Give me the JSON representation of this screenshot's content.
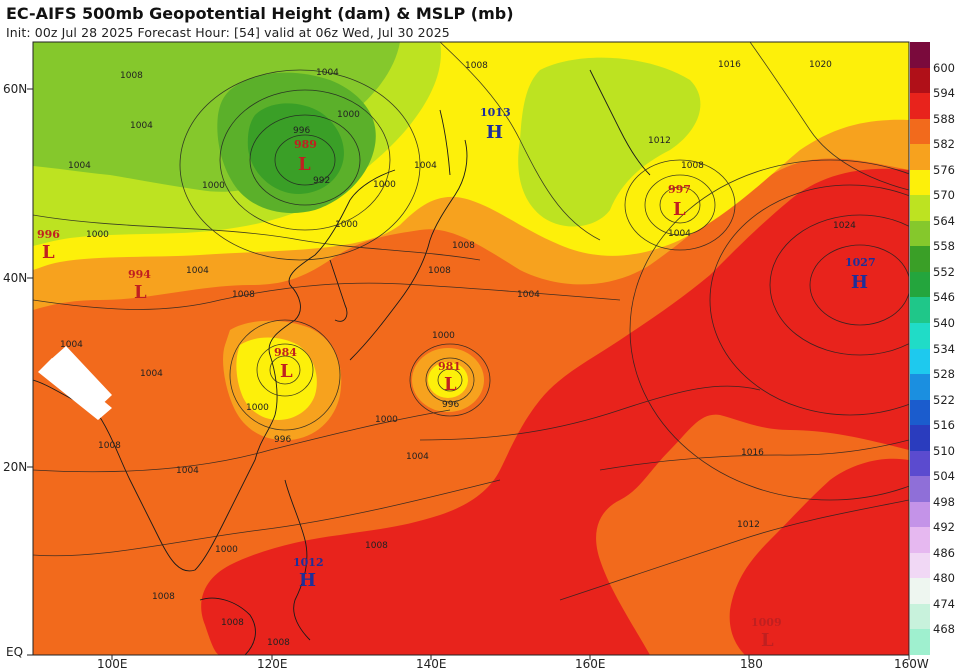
{
  "header": {
    "title": "EC-AIFS 500mb Geopotential Height (dam) & MSLP (mb)",
    "subtitle": "Init: 00z Jul 28 2025   Forecast Hour: [54]   valid at 06z Wed, Jul 30 2025"
  },
  "axes": {
    "lat_labels": [
      "60N",
      "40N",
      "20N",
      "EQ"
    ],
    "lon_labels": [
      "100E",
      "120E",
      "140E",
      "160E",
      "180",
      "160W"
    ]
  },
  "colorbar": {
    "levels": [
      "600",
      "594",
      "588",
      "582",
      "576",
      "570",
      "564",
      "558",
      "552",
      "546",
      "540",
      "534",
      "528",
      "522",
      "516",
      "510",
      "504",
      "498",
      "492",
      "486",
      "480",
      "474",
      "468"
    ],
    "colors": [
      "#7a0a3c",
      "#b01018",
      "#e8231c",
      "#f26a1c",
      "#f7a21e",
      "#fdf00a",
      "#bde321",
      "#85c82c",
      "#3a9f27",
      "#24a53d",
      "#1fc789",
      "#20dcc7",
      "#1ec9ee",
      "#1b8fe0",
      "#1b5ccd",
      "#2a3cbe",
      "#5b4bcf",
      "#8f6fd8",
      "#c493e8",
      "#e6b8f0",
      "#f1d8f5",
      "#eef6f0",
      "#c8f2dc",
      "#9ff0cf"
    ]
  },
  "pressure_centers": [
    {
      "type": "L",
      "value": "989"
    },
    {
      "type": "H",
      "value": "1013"
    },
    {
      "type": "L",
      "value": "997"
    },
    {
      "type": "L",
      "value": "996"
    },
    {
      "type": "L",
      "value": "994"
    },
    {
      "type": "H",
      "value": "1027"
    },
    {
      "type": "L",
      "value": "984"
    },
    {
      "type": "L",
      "value": "981"
    },
    {
      "type": "H",
      "value": "1012"
    },
    {
      "type": "L",
      "value": "1009"
    }
  ],
  "contour_labels": [
    "1008",
    "1004",
    "1004",
    "1008",
    "1004",
    "996",
    "1000",
    "1000",
    "992",
    "1000",
    "1004",
    "1000",
    "1000",
    "1004",
    "1008",
    "1016",
    "1012",
    "1008",
    "1004",
    "1020",
    "1024",
    "1004",
    "1008",
    "1000",
    "996",
    "996",
    "1000",
    "1004",
    "1000",
    "1004",
    "1008",
    "1016",
    "1012",
    "1008",
    "1000",
    "1008",
    "1008",
    "1008",
    "1008",
    "1004",
    "1004"
  ]
}
